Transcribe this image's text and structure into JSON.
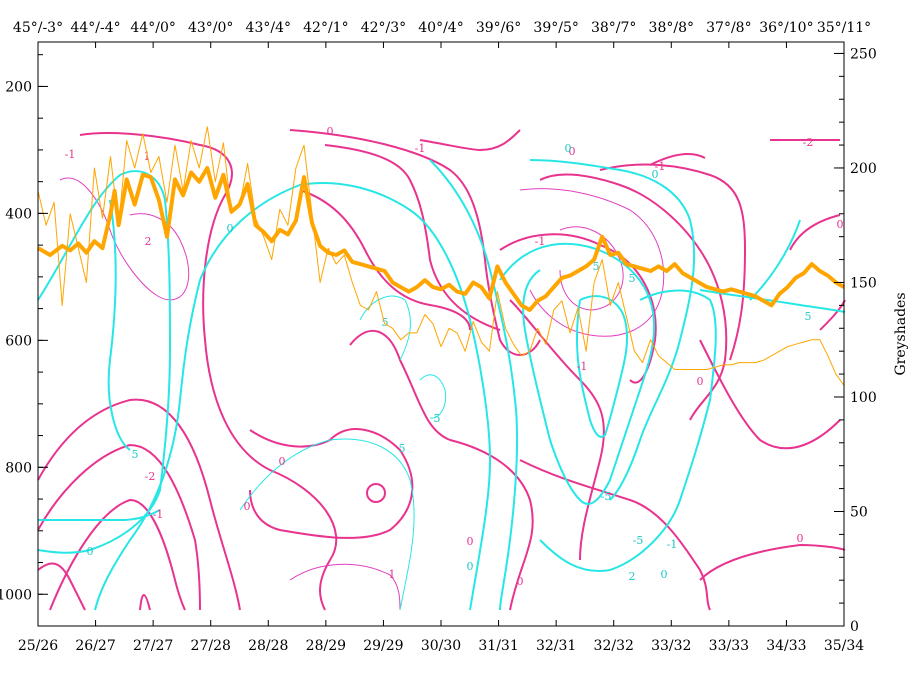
{
  "chart_data": {
    "type": "line",
    "top_axis_labels": [
      "45°/-3°",
      "44°/-4°",
      "44°/0°",
      "43°/0°",
      "43°/4°",
      "42°/1°",
      "42°/3°",
      "40°/4°",
      "39°/6°",
      "39°/5°",
      "38°/7°",
      "38°/8°",
      "37°/8°",
      "36°/10°",
      "35°/11°"
    ],
    "bottom_axis_labels": [
      "25/26",
      "26/27",
      "27/27",
      "27/28",
      "28/28",
      "28/29",
      "29/29",
      "30/30",
      "31/31",
      "32/31",
      "32/32",
      "33/32",
      "33/33",
      "34/33",
      "35/34"
    ],
    "left_axis": {
      "ylim": [
        1050,
        130
      ],
      "ticks": [
        200,
        400,
        600,
        800,
        1000
      ]
    },
    "right_axis": {
      "label": "Greyshades",
      "ylim": [
        0,
        255
      ],
      "ticks": [
        0,
        50,
        100,
        150,
        200,
        250
      ]
    },
    "x_range": [
      0,
      100
    ],
    "contour_labels": {
      "magenta": [
        "0",
        "0",
        "0",
        "0",
        "0",
        "0",
        "0",
        "0",
        "1",
        "1",
        "-1",
        "-1",
        "-1",
        "-1",
        "-2",
        "-2",
        "2",
        "-1",
        "-1",
        "0"
      ],
      "cyan": [
        "0",
        "0",
        "0",
        "0",
        "5",
        "5",
        "5",
        "5",
        "-5",
        "-5",
        "5",
        "5",
        "0",
        "5",
        "2",
        "0",
        "-1"
      ]
    },
    "series": [
      {
        "color": "#ffa500",
        "style": "thick",
        "x": [
          0,
          1.5,
          3,
          4,
          5,
          6,
          7,
          8,
          9,
          9.5,
          10,
          11,
          12,
          13,
          14,
          15,
          16,
          17,
          18,
          19,
          20,
          21,
          22,
          23,
          24,
          25,
          26,
          27,
          28,
          29,
          30,
          31,
          32,
          33,
          34,
          35,
          36,
          37,
          38,
          39,
          40,
          41,
          42,
          43,
          44,
          45,
          46,
          47,
          48,
          49,
          50,
          51,
          52,
          53,
          54,
          55,
          56,
          57,
          58,
          59,
          60,
          61,
          62,
          63,
          64,
          65,
          66,
          67,
          68,
          69,
          70,
          71,
          72,
          73,
          74,
          75,
          76,
          77,
          78,
          79,
          80,
          81,
          82,
          83,
          84,
          85,
          86,
          87,
          88,
          89,
          90,
          91,
          92,
          93,
          94,
          95,
          96,
          97,
          98,
          99,
          100
        ],
        "y": [
          165,
          162,
          166,
          164,
          167,
          163,
          168,
          165,
          180,
          190,
          175,
          195,
          184,
          197,
          196,
          186,
          170,
          195,
          188,
          198,
          194,
          200,
          187,
          197,
          181,
          184,
          193,
          175,
          172,
          168,
          173,
          171,
          177,
          196,
          176,
          166,
          163,
          162,
          164,
          159,
          158,
          157,
          156,
          155,
          150,
          148,
          146,
          148,
          151,
          148,
          147,
          149,
          146,
          145,
          150,
          148,
          143,
          157,
          150,
          145,
          140,
          138,
          142,
          144,
          148,
          152,
          153,
          155,
          157,
          160,
          170,
          162,
          163,
          158,
          157,
          156,
          155,
          157,
          155,
          158,
          154,
          152,
          150,
          148,
          147,
          146,
          147,
          146,
          145,
          144,
          142,
          140,
          145,
          148,
          152,
          154,
          158,
          155,
          153,
          150,
          148
        ]
      },
      {
        "color": "#ffa500",
        "style": "thin",
        "x": [
          0,
          1,
          2,
          3,
          4,
          5,
          6,
          7,
          8,
          9,
          10,
          11,
          12,
          13,
          14,
          15,
          16,
          17,
          18,
          19,
          20,
          21,
          22,
          23,
          24,
          25,
          26,
          27,
          28,
          29,
          30,
          31,
          32,
          33,
          34,
          35,
          36,
          37,
          38,
          39,
          40,
          41,
          42,
          43,
          44,
          45,
          46,
          47,
          48,
          49,
          50,
          51,
          52,
          53,
          54,
          55,
          56,
          57,
          58,
          59,
          60,
          61,
          62,
          63,
          64,
          65,
          66,
          67,
          68,
          69,
          70,
          71,
          72,
          73,
          74,
          75,
          76,
          77,
          78,
          79,
          80,
          81,
          82,
          83,
          84,
          85,
          86,
          87,
          88,
          89,
          90,
          91,
          92,
          93,
          94,
          95,
          96,
          97,
          98,
          99,
          100
        ],
        "y": [
          190,
          175,
          185,
          140,
          180,
          165,
          150,
          200,
          178,
          205,
          175,
          212,
          200,
          215,
          198,
          205,
          185,
          210,
          190,
          212,
          200,
          218,
          194,
          211,
          180,
          183,
          202,
          178,
          170,
          160,
          182,
          175,
          200,
          210,
          180,
          150,
          165,
          158,
          162,
          150,
          140,
          138,
          146,
          132,
          130,
          125,
          128,
          128,
          136,
          132,
          122,
          130,
          128,
          120,
          133,
          124,
          120,
          146,
          130,
          123,
          118,
          120,
          130,
          123,
          138,
          142,
          128,
          139,
          120,
          150,
          160,
          140,
          150,
          135,
          120,
          115,
          125,
          118,
          115,
          112,
          112,
          112,
          112,
          112,
          113,
          114,
          114,
          115,
          115,
          115,
          116,
          118,
          120,
          122,
          123,
          124,
          125,
          125,
          118,
          110,
          105
        ]
      }
    ]
  }
}
